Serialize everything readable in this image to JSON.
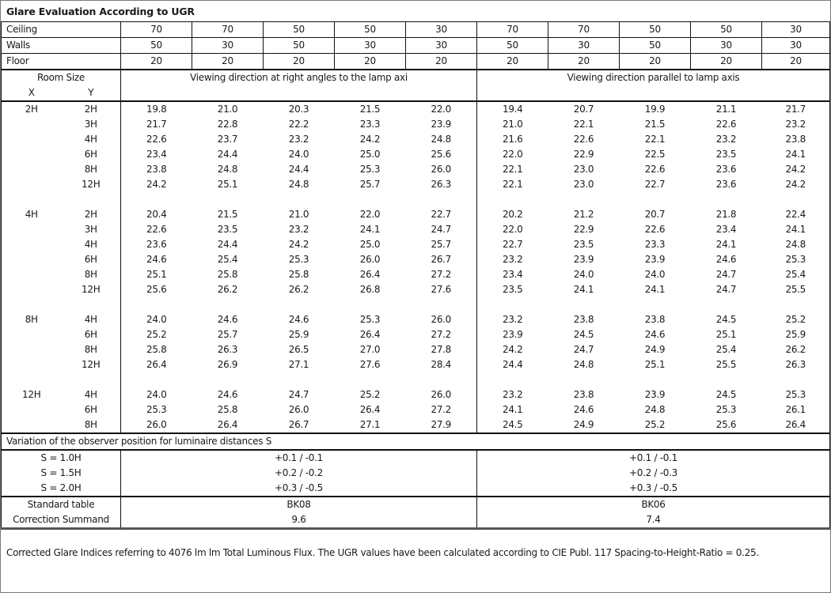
{
  "title": "Glare Evaluation According to UGR",
  "reflectances": [
    {
      "label": "Ceiling",
      "values": [
        "70",
        "70",
        "50",
        "50",
        "30",
        "70",
        "70",
        "50",
        "50",
        "30"
      ]
    },
    {
      "label": "Walls",
      "values": [
        "50",
        "30",
        "50",
        "30",
        "30",
        "50",
        "30",
        "50",
        "30",
        "30"
      ]
    },
    {
      "label": "Floor",
      "values": [
        "20",
        "20",
        "20",
        "20",
        "20",
        "20",
        "20",
        "20",
        "20",
        "20"
      ]
    }
  ],
  "header": {
    "room_size": "Room Size",
    "x": "X",
    "y": "Y",
    "perpendicular": "Viewing direction at right angles to the lamp axi",
    "parallel": "Viewing direction parallel to lamp axis"
  },
  "groups": [
    {
      "x": "2H",
      "rows": [
        {
          "y": "2H",
          "values": [
            "19.8",
            "21.0",
            "20.3",
            "21.5",
            "22.0",
            "19.4",
            "20.7",
            "19.9",
            "21.1",
            "21.7"
          ]
        },
        {
          "y": "3H",
          "values": [
            "21.7",
            "22.8",
            "22.2",
            "23.3",
            "23.9",
            "21.0",
            "22.1",
            "21.5",
            "22.6",
            "23.2"
          ]
        },
        {
          "y": "4H",
          "values": [
            "22.6",
            "23.7",
            "23.2",
            "24.2",
            "24.8",
            "21.6",
            "22.6",
            "22.1",
            "23.2",
            "23.8"
          ]
        },
        {
          "y": "6H",
          "values": [
            "23.4",
            "24.4",
            "24.0",
            "25.0",
            "25.6",
            "22.0",
            "22.9",
            "22.5",
            "23.5",
            "24.1"
          ]
        },
        {
          "y": "8H",
          "values": [
            "23.8",
            "24.8",
            "24.4",
            "25.3",
            "26.0",
            "22.1",
            "23.0",
            "22.6",
            "23.6",
            "24.2"
          ]
        },
        {
          "y": "12H",
          "values": [
            "24.2",
            "25.1",
            "24.8",
            "25.7",
            "26.3",
            "22.1",
            "23.0",
            "22.7",
            "23.6",
            "24.2"
          ]
        }
      ]
    },
    {
      "x": "4H",
      "rows": [
        {
          "y": "2H",
          "values": [
            "20.4",
            "21.5",
            "21.0",
            "22.0",
            "22.7",
            "20.2",
            "21.2",
            "20.7",
            "21.8",
            "22.4"
          ]
        },
        {
          "y": "3H",
          "values": [
            "22.6",
            "23.5",
            "23.2",
            "24.1",
            "24.7",
            "22.0",
            "22.9",
            "22.6",
            "23.4",
            "24.1"
          ]
        },
        {
          "y": "4H",
          "values": [
            "23.6",
            "24.4",
            "24.2",
            "25.0",
            "25.7",
            "22.7",
            "23.5",
            "23.3",
            "24.1",
            "24.8"
          ]
        },
        {
          "y": "6H",
          "values": [
            "24.6",
            "25.4",
            "25.3",
            "26.0",
            "26.7",
            "23.2",
            "23.9",
            "23.9",
            "24.6",
            "25.3"
          ]
        },
        {
          "y": "8H",
          "values": [
            "25.1",
            "25.8",
            "25.8",
            "26.4",
            "27.2",
            "23.4",
            "24.0",
            "24.0",
            "24.7",
            "25.4"
          ]
        },
        {
          "y": "12H",
          "values": [
            "25.6",
            "26.2",
            "26.2",
            "26.8",
            "27.6",
            "23.5",
            "24.1",
            "24.1",
            "24.7",
            "25.5"
          ]
        }
      ]
    },
    {
      "x": "8H",
      "rows": [
        {
          "y": "4H",
          "values": [
            "24.0",
            "24.6",
            "24.6",
            "25.3",
            "26.0",
            "23.2",
            "23.8",
            "23.8",
            "24.5",
            "25.2"
          ]
        },
        {
          "y": "6H",
          "values": [
            "25.2",
            "25.7",
            "25.9",
            "26.4",
            "27.2",
            "23.9",
            "24.5",
            "24.6",
            "25.1",
            "25.9"
          ]
        },
        {
          "y": "8H",
          "values": [
            "25.8",
            "26.3",
            "26.5",
            "27.0",
            "27.8",
            "24.2",
            "24.7",
            "24.9",
            "25.4",
            "26.2"
          ]
        },
        {
          "y": "12H",
          "values": [
            "26.4",
            "26.9",
            "27.1",
            "27.6",
            "28.4",
            "24.4",
            "24.8",
            "25.1",
            "25.5",
            "26.3"
          ]
        }
      ]
    },
    {
      "x": "12H",
      "rows": [
        {
          "y": "4H",
          "values": [
            "24.0",
            "24.6",
            "24.7",
            "25.2",
            "26.0",
            "23.2",
            "23.8",
            "23.9",
            "24.5",
            "25.3"
          ]
        },
        {
          "y": "6H",
          "values": [
            "25.3",
            "25.8",
            "26.0",
            "26.4",
            "27.2",
            "24.1",
            "24.6",
            "24.8",
            "25.3",
            "26.1"
          ]
        },
        {
          "y": "8H",
          "values": [
            "26.0",
            "26.4",
            "26.7",
            "27.1",
            "27.9",
            "24.5",
            "24.9",
            "25.2",
            "25.6",
            "26.4"
          ]
        }
      ]
    }
  ],
  "variation": {
    "title": "Variation of the observer position for luminaire distances S",
    "rows": [
      {
        "label": "S = 1.0H",
        "perpendicular": "+0.1 / -0.1",
        "parallel": "+0.1 / -0.1"
      },
      {
        "label": "S = 1.5H",
        "perpendicular": "+0.2 / -0.2",
        "parallel": "+0.2 / -0.3"
      },
      {
        "label": "S = 2.0H",
        "perpendicular": "+0.3 / -0.5",
        "parallel": "+0.3 / -0.5"
      }
    ]
  },
  "standard": {
    "label": "Standard table",
    "perpendicular": "BK08",
    "parallel": "BK06"
  },
  "correction": {
    "label": "Correction Summand",
    "perpendicular": "9.6",
    "parallel": "7.4"
  },
  "footer": "Corrected Glare Indices referring to 4076 lm lm Total Luminous Flux. The UGR values have been calculated according to CIE Publ. 117    Spacing-to-Height-Ratio = 0.25."
}
